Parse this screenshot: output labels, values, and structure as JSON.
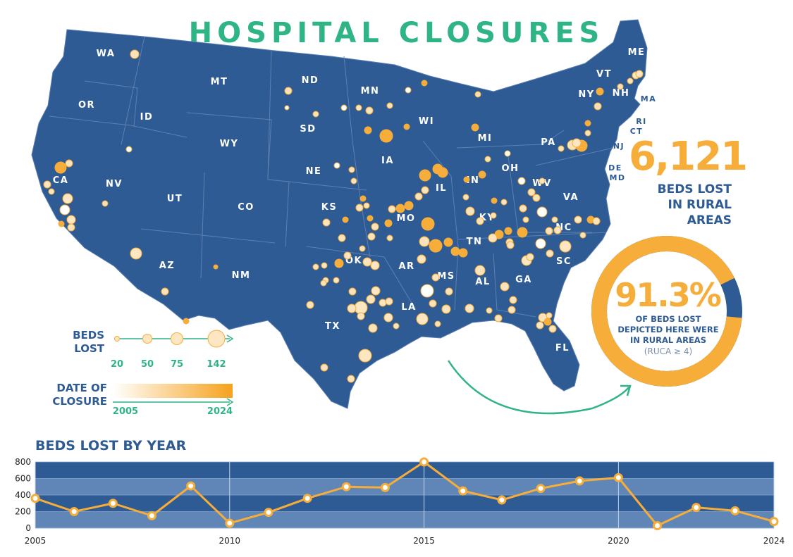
{
  "title": "HOSPITAL CLOSURES",
  "stats": {
    "beds_lost_rural": "6,121",
    "beds_lost_rural_label_1": "BEDS LOST",
    "beds_lost_rural_label_2": "IN RURAL",
    "beds_lost_rural_label_3": "AREAS",
    "rural_pct": "91.3%",
    "rural_pct_fraction": 0.913,
    "rural_pct_label_1": "OF BEDS LOST",
    "rural_pct_label_2": "DEPICTED HERE WERE",
    "rural_pct_label_3": "IN RURAL AREAS",
    "rural_pct_note": "(RUCA ≥ 4)"
  },
  "legend": {
    "size_title_1": "BEDS",
    "size_title_2": "LOST",
    "size_values": [
      "20",
      "50",
      "75",
      "142"
    ],
    "date_title_1": "DATE OF",
    "date_title_2": "CLOSURE",
    "date_start": "2005",
    "date_end": "2024"
  },
  "colors": {
    "map_fill": "#2e5b94",
    "accent_orange": "#f6ad3a",
    "accent_green": "#2fb486",
    "pale_dot": "#fbe3bc"
  },
  "states": [
    "WA",
    "OR",
    "CA",
    "ID",
    "NV",
    "MT",
    "WY",
    "UT",
    "AZ",
    "CO",
    "NM",
    "ND",
    "SD",
    "NE",
    "KS",
    "OK",
    "TX",
    "MN",
    "IA",
    "MO",
    "AR",
    "LA",
    "WI",
    "IL",
    "MI",
    "IN",
    "OH",
    "KY",
    "TN",
    "MS",
    "AL",
    "GA",
    "FL",
    "SC",
    "NC",
    "VA",
    "WV",
    "PA",
    "NY",
    "VT",
    "NH",
    "ME",
    "MA",
    "RI",
    "CT",
    "NJ",
    "DE",
    "MD"
  ],
  "chart_data": {
    "type": "line",
    "title": "BEDS LOST BY YEAR",
    "x": [
      2005,
      2006,
      2007,
      2008,
      2009,
      2010,
      2011,
      2012,
      2013,
      2014,
      2015,
      2016,
      2017,
      2018,
      2019,
      2020,
      2021,
      2022,
      2023,
      2024
    ],
    "series": [
      {
        "values": [
          360,
          200,
          300,
          150,
          510,
          60,
          190,
          360,
          500,
          490,
          800,
          450,
          340,
          480,
          570,
          610,
          30,
          250,
          210,
          80
        ]
      }
    ],
    "xticks": [
      "2005",
      "2010",
      "2015",
      "2020",
      "2024"
    ],
    "yticks": [
      "0",
      "200",
      "400",
      "600",
      "800"
    ],
    "ylim": [
      0,
      800
    ],
    "grid": true
  }
}
